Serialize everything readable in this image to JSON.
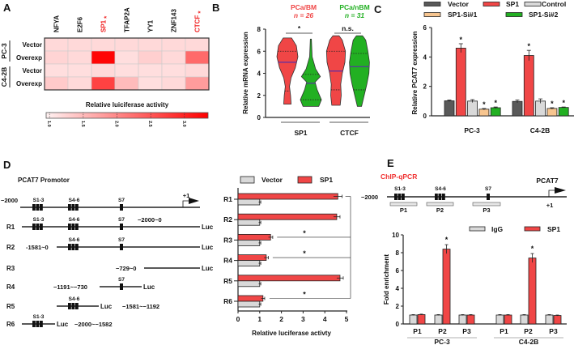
{
  "panel_labels": {
    "A": "A",
    "B": "B",
    "C": "C",
    "D": "D",
    "E": "E"
  },
  "chart_data": [
    {
      "type": "heatmap",
      "columns": [
        "NFYA",
        "E2F6",
        "SP1",
        "TFAP2A",
        "YY1",
        "ZNF143",
        "CTCF"
      ],
      "column_significant": [
        false,
        false,
        true,
        false,
        false,
        false,
        true
      ],
      "sig_mark": "*",
      "row_groups": [
        {
          "name": "PC-3",
          "rows": [
            "Vector",
            "Overexp"
          ]
        },
        {
          "name": "C4-2B",
          "rows": [
            "Vector",
            "Overexp"
          ]
        }
      ],
      "values": [
        [
          1.2,
          1.2,
          1.2,
          1.2,
          1.2,
          1.2,
          1.2
        ],
        [
          1.25,
          1.2,
          3.3,
          1.15,
          1.3,
          1.2,
          2.3
        ],
        [
          1.15,
          1.15,
          1.2,
          1.15,
          1.15,
          1.15,
          1.2
        ],
        [
          1.35,
          1.2,
          2.7,
          1.5,
          1.15,
          1.2,
          1.8
        ]
      ],
      "colorbar": {
        "title": "Relative  luiciferase activity",
        "ticks": [
          "1.0",
          "1.5",
          "2.0",
          "2.5",
          "3.0"
        ],
        "range": [
          0.95,
          3.35
        ]
      },
      "colors": {
        "low": "#fff2f2",
        "high": "#ff0000"
      }
    },
    {
      "type": "violin",
      "ylabel": "Relative mRNA expression",
      "ylim": [
        0,
        8
      ],
      "yticks": [
        "0",
        "2",
        "4",
        "6",
        "8"
      ],
      "series": [
        {
          "name": "PCa/BM",
          "n": "n = 26",
          "color": "#f04646"
        },
        {
          "name": "PCa/nBM",
          "n": "n = 31",
          "color": "#22b022"
        }
      ],
      "groups": [
        {
          "name": "SP1",
          "sig": "*"
        },
        {
          "name": "CTCF",
          "sig": "n.s."
        }
      ],
      "violins": [
        {
          "group": 0,
          "series": 0,
          "median": 5.0,
          "q1": 2.4,
          "q3": 6.0,
          "density": [
            [
              1.2,
              0.35
            ],
            [
              2,
              0.3
            ],
            [
              2.8,
              0.2
            ],
            [
              3.6,
              0.35
            ],
            [
              4.5,
              0.75
            ],
            [
              5.5,
              1.0
            ],
            [
              6.5,
              0.85
            ],
            [
              7.2,
              0.4
            ]
          ]
        },
        {
          "group": 0,
          "series": 1,
          "median": 3.1,
          "q1": 1.6,
          "q3": 3.9,
          "density": [
            [
              1.0,
              0.75
            ],
            [
              1.6,
              1.0
            ],
            [
              2.5,
              0.6
            ],
            [
              3.2,
              0.4
            ],
            [
              3.7,
              0.9
            ],
            [
              4.4,
              0.45
            ],
            [
              5.5,
              0.12
            ],
            [
              7.1,
              0.05
            ]
          ]
        },
        {
          "group": 1,
          "series": 0,
          "median": 4.2,
          "q1": 2.5,
          "q3": 6.0,
          "density": [
            [
              1.1,
              0.4
            ],
            [
              2,
              0.5
            ],
            [
              3,
              0.45
            ],
            [
              4,
              0.6
            ],
            [
              5,
              0.85
            ],
            [
              6,
              0.9
            ],
            [
              7,
              0.6
            ],
            [
              7.4,
              0.3
            ]
          ]
        },
        {
          "group": 1,
          "series": 1,
          "median": 4.6,
          "q1": 2.5,
          "q3": 5.8,
          "density": [
            [
              1.0,
              0.2
            ],
            [
              2,
              0.45
            ],
            [
              3,
              0.7
            ],
            [
              4,
              0.9
            ],
            [
              5,
              0.95
            ],
            [
              6,
              0.8
            ],
            [
              7,
              0.6
            ],
            [
              7.4,
              0.3
            ]
          ]
        }
      ]
    },
    {
      "type": "bar",
      "ylabel": "Relative PCAT7 expression",
      "ylim": [
        0,
        6
      ],
      "yticks": [
        "0",
        "2",
        "4",
        "6"
      ],
      "categories": [
        "PC-3",
        "C4-2B"
      ],
      "sig_mark": "*",
      "series": [
        {
          "name": "Vector",
          "color": "#595959",
          "values": [
            1.02,
            0.98
          ],
          "errors": [
            0.05,
            0.1
          ],
          "sig": [
            false,
            false
          ]
        },
        {
          "name": "SP1",
          "color": "#f04646",
          "values": [
            4.6,
            4.1
          ],
          "errors": [
            0.3,
            0.35
          ],
          "sig": [
            true,
            true
          ]
        },
        {
          "name": "Control",
          "color": "#d9d9d9",
          "values": [
            1.0,
            1.0
          ],
          "errors": [
            0.1,
            0.15
          ],
          "sig": [
            false,
            false
          ]
        },
        {
          "name": "SP1-Si#1",
          "color": "#f7c58f",
          "values": [
            0.45,
            0.5
          ],
          "errors": [
            0.05,
            0.05
          ],
          "sig": [
            true,
            true
          ]
        },
        {
          "name": "SP1-Si#2",
          "color": "#22b022",
          "values": [
            0.55,
            0.57
          ],
          "errors": [
            0.05,
            0.03
          ],
          "sig": [
            true,
            true
          ]
        }
      ]
    },
    {
      "type": "bar",
      "orientation": "horizontal",
      "xlabel": "Relative luciferase activty",
      "xlim": [
        0,
        5
      ],
      "xticks": [
        "0",
        "1",
        "2",
        "3",
        "4",
        "5"
      ],
      "categories": [
        "R1",
        "R2",
        "R3",
        "R4",
        "R5",
        "R6"
      ],
      "series": [
        {
          "name": "Vector",
          "color": "#d9d9d9",
          "values": [
            1,
            1,
            1,
            1,
            1,
            1
          ],
          "errors": [
            0.05,
            0.05,
            0.05,
            0.05,
            0.05,
            0.05
          ]
        },
        {
          "name": "SP1",
          "color": "#f04646",
          "values": [
            4.6,
            4.55,
            1.5,
            1.3,
            4.7,
            1.15
          ],
          "errors": [
            0.2,
            0.15,
            0.1,
            0.1,
            0.15,
            0.08
          ]
        }
      ],
      "significance": [
        {
          "compare": [
            "R1",
            "R3"
          ],
          "mark": "*"
        },
        {
          "compare": [
            "R1",
            "R4"
          ],
          "mark": "*"
        },
        {
          "compare": [
            "R1",
            "R6"
          ],
          "mark": "*"
        }
      ]
    },
    {
      "type": "bar",
      "ylabel": "Fold enrichment",
      "ylim": [
        0,
        10
      ],
      "yticks": [
        "0",
        "2",
        "4",
        "6",
        "8",
        "10"
      ],
      "groups": [
        {
          "name": "PC-3",
          "categories": [
            "P1",
            "P2",
            "P3"
          ]
        },
        {
          "name": "C4-2B",
          "categories": [
            "P1",
            "P2",
            "P3"
          ]
        }
      ],
      "sig_mark": "*",
      "series": [
        {
          "name": "IgG",
          "color": "#d9d9d9",
          "values": [
            1.0,
            1.0,
            1.0,
            1.0,
            1.0,
            1.0
          ],
          "errors": [
            0.05,
            0.05,
            0.05,
            0.05,
            0.05,
            0.05
          ]
        },
        {
          "name": "SP1",
          "color": "#f04646",
          "values": [
            1.05,
            8.4,
            1.0,
            1.0,
            7.4,
            0.95
          ],
          "errors": [
            0.05,
            0.5,
            0.05,
            0.05,
            0.5,
            0.05
          ],
          "sig": [
            false,
            true,
            false,
            false,
            true,
            false
          ]
        }
      ]
    }
  ],
  "diagram_d": {
    "title": "PCAT7 Promotor",
    "start_label": "−2000",
    "tss_label": "+1",
    "sites": [
      "S1-3",
      "S4-6",
      "S7"
    ],
    "reporter": "Luc",
    "constructs": [
      {
        "name": "R1",
        "range": "−2000~0",
        "sites": [
          0,
          1,
          2
        ]
      },
      {
        "name": "R2",
        "range": "-1581~0",
        "sites": [
          1,
          2
        ]
      },
      {
        "name": "R3",
        "range": "−729~0",
        "sites": []
      },
      {
        "name": "R4",
        "range": "−1191~−730",
        "sites": [
          2
        ]
      },
      {
        "name": "R5",
        "range": "−1581~−1192",
        "sites": [
          1
        ]
      },
      {
        "name": "R6",
        "range": "−2000~−1582",
        "sites": [
          0
        ]
      }
    ]
  },
  "diagram_e": {
    "title": "ChIP-qPCR",
    "gene": "PCAT7",
    "start_label": "−2000",
    "tss_label": "+1",
    "sites": [
      "S1-3",
      "S4-6",
      "S7"
    ],
    "primers": [
      "P1",
      "P2",
      "P3"
    ]
  }
}
